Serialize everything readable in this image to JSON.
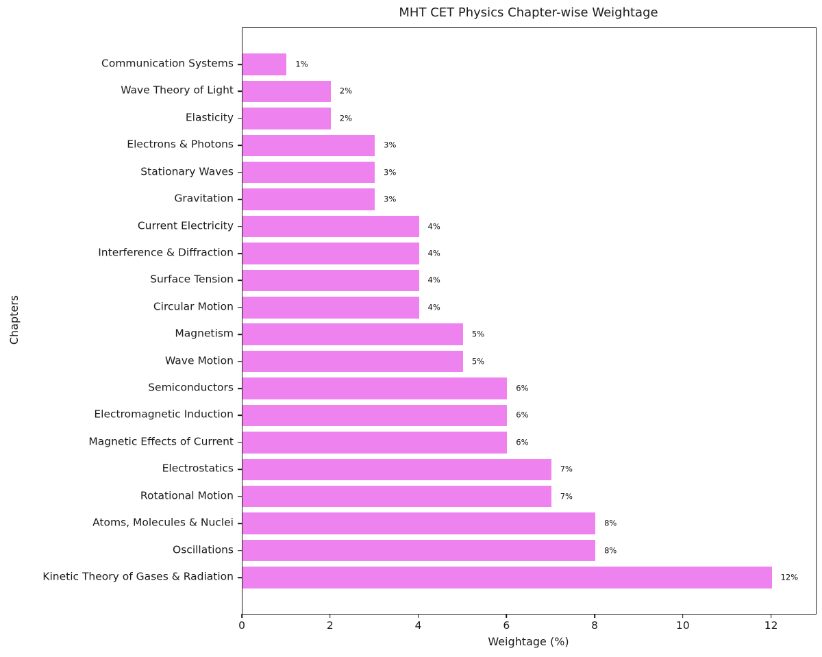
{
  "chart_data": {
    "type": "bar",
    "orientation": "horizontal",
    "title": "MHT CET Physics Chapter-wise Weightage",
    "xlabel": "Weightage (%)",
    "ylabel": "Chapters",
    "categories_top_to_bottom": [
      "Communication Systems",
      "Wave Theory of Light",
      "Elasticity",
      "Electrons & Photons",
      "Stationary Waves",
      "Gravitation",
      "Current Electricity",
      "Interference & Diffraction",
      "Surface Tension",
      "Circular Motion",
      "Magnetism",
      "Wave Motion",
      "Semiconductors",
      "Electromagnetic Induction",
      "Magnetic Effects of Current",
      "Electrostatics",
      "Rotational Motion",
      "Atoms, Molecules & Nuclei",
      "Oscillations",
      "Kinetic Theory of Gases & Radiation"
    ],
    "values": [
      1,
      2,
      2,
      3,
      3,
      3,
      4,
      4,
      4,
      4,
      5,
      5,
      6,
      6,
      6,
      7,
      7,
      8,
      8,
      12
    ],
    "value_labels": [
      "1%",
      "2%",
      "2%",
      "3%",
      "3%",
      "3%",
      "4%",
      "4%",
      "4%",
      "4%",
      "5%",
      "5%",
      "6%",
      "6%",
      "6%",
      "7%",
      "7%",
      "8%",
      "8%",
      "12%"
    ],
    "x_ticks": [
      0,
      2,
      4,
      6,
      8,
      10,
      12
    ],
    "x_tick_labels": [
      "0",
      "2",
      "4",
      "6",
      "8",
      "10",
      "12"
    ],
    "xlim": [
      0,
      13
    ],
    "bar_color": "#EE82EE",
    "grid": false,
    "legend": null
  }
}
